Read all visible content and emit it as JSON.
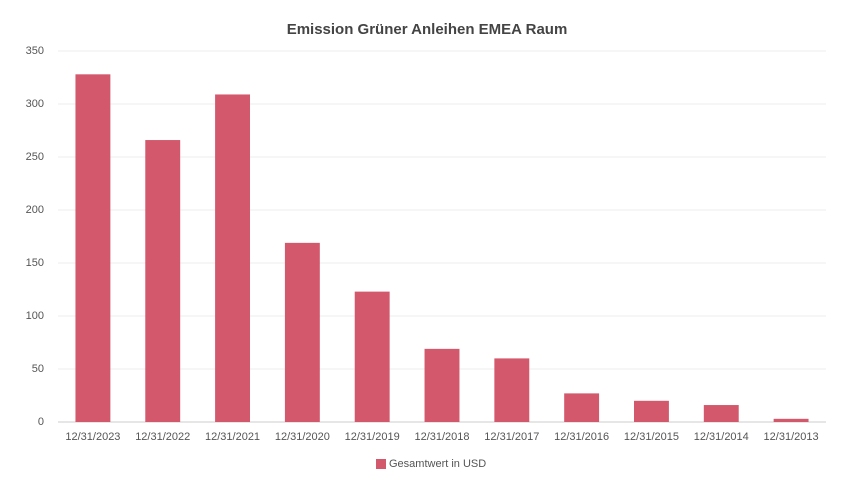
{
  "chart_data": {
    "type": "bar",
    "title": "Emission Grüner Anleihen EMEA Raum",
    "categories": [
      "12/31/2023",
      "12/31/2022",
      "12/31/2021",
      "12/31/2020",
      "12/31/2019",
      "12/31/2018",
      "12/31/2017",
      "12/31/2016",
      "12/31/2015",
      "12/31/2014",
      "12/31/2013"
    ],
    "series": [
      {
        "name": "Gesamtwert in USD",
        "color": "#d4586c",
        "values": [
          328,
          266,
          309,
          169,
          123,
          69,
          60,
          27,
          20,
          16,
          3
        ]
      }
    ],
    "ylim": [
      0,
      350
    ],
    "yticks": [
      0,
      50,
      100,
      150,
      200,
      250,
      300,
      350
    ],
    "grid": true,
    "legend": "bottom"
  }
}
